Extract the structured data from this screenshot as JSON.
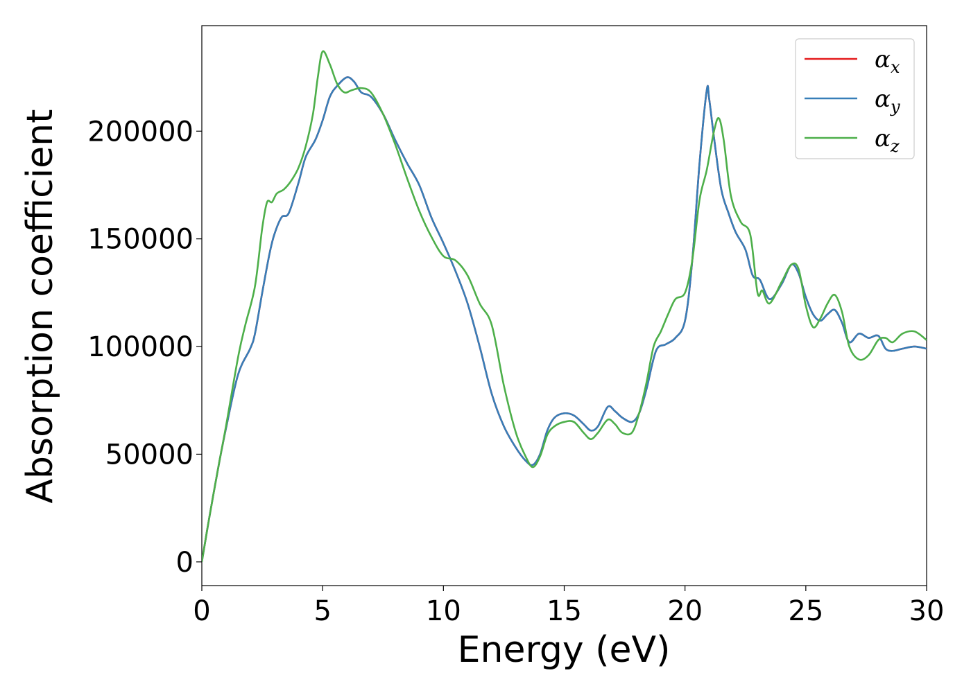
{
  "chart_data": {
    "type": "line",
    "xlabel": "Energy (eV)",
    "ylabel": "Absorption coefficient",
    "xlim": [
      0,
      30
    ],
    "ylim": [
      -11000,
      249000
    ],
    "xticks": [
      0,
      5,
      10,
      15,
      20,
      25,
      30
    ],
    "xtick_labels": [
      "0",
      "5",
      "10",
      "15",
      "20",
      "25",
      "30"
    ],
    "yticks": [
      0,
      50000,
      100000,
      150000,
      200000
    ],
    "ytick_labels": [
      "0",
      "50000",
      "100000",
      "150000",
      "200000"
    ],
    "grid": false,
    "legend_position": "top-right",
    "series": [
      {
        "name": "αx",
        "symbol": "α",
        "subscript": "x",
        "color": "#e41a1c",
        "x": [
          0,
          0.3,
          0.7,
          1.0,
          1.5,
          2.0,
          2.2,
          2.5,
          2.8,
          3.0,
          3.3,
          3.6,
          4.0,
          4.3,
          4.7,
          5.0,
          5.3,
          5.6,
          6.0,
          6.3,
          6.6,
          7.0,
          7.5,
          8.0,
          8.5,
          9.0,
          9.5,
          10.0,
          10.5,
          11.0,
          11.5,
          12.0,
          12.5,
          13.0,
          13.4,
          13.7,
          14.0,
          14.3,
          14.6,
          15.0,
          15.4,
          15.8,
          16.1,
          16.4,
          16.8,
          17.1,
          17.4,
          17.8,
          18.1,
          18.4,
          18.8,
          19.2,
          19.6,
          20.0,
          20.3,
          20.6,
          20.9,
          21.0,
          21.2,
          21.5,
          21.8,
          22.1,
          22.5,
          22.8,
          23.1,
          23.5,
          24.0,
          24.4,
          24.7,
          25.0,
          25.3,
          25.6,
          25.9,
          26.2,
          26.5,
          26.8,
          27.2,
          27.6,
          28.0,
          28.3,
          28.6,
          29.0,
          29.5,
          30.0
        ],
        "y": [
          0,
          20000,
          45000,
          62000,
          87000,
          99000,
          106000,
          125000,
          143000,
          152000,
          160000,
          162000,
          176000,
          188000,
          196000,
          205000,
          216000,
          221000,
          225000,
          223000,
          218000,
          216000,
          208000,
          196000,
          185000,
          175000,
          160000,
          148000,
          135000,
          120000,
          100000,
          78000,
          63000,
          53000,
          47000,
          45000,
          50000,
          61000,
          67000,
          69000,
          68000,
          64000,
          61000,
          63000,
          72000,
          70000,
          67000,
          65000,
          69000,
          80000,
          98000,
          101000,
          104000,
          112000,
          140000,
          185000,
          219000,
          215000,
          197000,
          173000,
          162000,
          153000,
          145000,
          133000,
          131000,
          122000,
          129000,
          138000,
          134000,
          123000,
          115000,
          112000,
          115000,
          117000,
          111000,
          102000,
          106000,
          104000,
          105000,
          99000,
          98000,
          99000,
          100000,
          99000
        ]
      },
      {
        "name": "αy",
        "symbol": "α",
        "subscript": "y",
        "color": "#377eb8",
        "x": [
          0,
          0.3,
          0.7,
          1.0,
          1.5,
          2.0,
          2.2,
          2.5,
          2.8,
          3.0,
          3.3,
          3.6,
          4.0,
          4.3,
          4.7,
          5.0,
          5.3,
          5.6,
          6.0,
          6.3,
          6.6,
          7.0,
          7.5,
          8.0,
          8.5,
          9.0,
          9.5,
          10.0,
          10.5,
          11.0,
          11.5,
          12.0,
          12.5,
          13.0,
          13.4,
          13.7,
          14.0,
          14.3,
          14.6,
          15.0,
          15.4,
          15.8,
          16.1,
          16.4,
          16.8,
          17.1,
          17.4,
          17.8,
          18.1,
          18.4,
          18.8,
          19.2,
          19.6,
          20.0,
          20.3,
          20.6,
          20.9,
          21.0,
          21.2,
          21.5,
          21.8,
          22.1,
          22.5,
          22.8,
          23.1,
          23.5,
          24.0,
          24.4,
          24.7,
          25.0,
          25.3,
          25.6,
          25.9,
          26.2,
          26.5,
          26.8,
          27.2,
          27.6,
          28.0,
          28.3,
          28.6,
          29.0,
          29.5,
          30.0
        ],
        "y": [
          0,
          20000,
          45000,
          62000,
          87000,
          99000,
          106000,
          125000,
          143000,
          152000,
          160000,
          162000,
          176000,
          188000,
          196000,
          205000,
          216000,
          221000,
          225000,
          223000,
          218000,
          216000,
          208000,
          196000,
          185000,
          175000,
          160000,
          148000,
          135000,
          120000,
          100000,
          78000,
          63000,
          53000,
          47000,
          45000,
          50000,
          61000,
          67000,
          69000,
          68000,
          64000,
          61000,
          63000,
          72000,
          70000,
          67000,
          65000,
          69000,
          80000,
          98000,
          101000,
          104000,
          112000,
          140000,
          185000,
          219000,
          215000,
          197000,
          173000,
          162000,
          153000,
          145000,
          133000,
          131000,
          122000,
          129000,
          138000,
          134000,
          123000,
          115000,
          112000,
          115000,
          117000,
          111000,
          102000,
          106000,
          104000,
          105000,
          99000,
          98000,
          99000,
          100000,
          99000
        ]
      },
      {
        "name": "αz",
        "symbol": "α",
        "subscript": "z",
        "color": "#4daf4a",
        "x": [
          0,
          0.3,
          0.7,
          1.0,
          1.5,
          1.8,
          2.2,
          2.5,
          2.7,
          2.9,
          3.1,
          3.4,
          3.7,
          4.0,
          4.3,
          4.6,
          4.8,
          5.0,
          5.3,
          5.6,
          5.9,
          6.2,
          6.6,
          7.0,
          7.5,
          8.0,
          8.5,
          9.0,
          9.5,
          10.0,
          10.5,
          11.0,
          11.5,
          12.0,
          12.5,
          13.0,
          13.4,
          13.7,
          14.0,
          14.3,
          14.6,
          15.0,
          15.4,
          15.8,
          16.1,
          16.4,
          16.8,
          17.1,
          17.4,
          17.8,
          18.1,
          18.4,
          18.7,
          19.0,
          19.3,
          19.6,
          20.0,
          20.3,
          20.6,
          20.9,
          21.2,
          21.4,
          21.6,
          21.9,
          22.3,
          22.7,
          23.0,
          23.2,
          23.5,
          24.0,
          24.4,
          24.7,
          25.0,
          25.3,
          25.6,
          25.9,
          26.2,
          26.5,
          26.8,
          27.2,
          27.6,
          28.0,
          28.3,
          28.6,
          29.0,
          29.5,
          30.0
        ],
        "y": [
          0,
          20000,
          45000,
          63000,
          95000,
          110000,
          128000,
          155000,
          167000,
          167000,
          171000,
          173000,
          177000,
          183000,
          193000,
          208000,
          225000,
          237000,
          231000,
          222000,
          218000,
          219000,
          220000,
          218000,
          208000,
          194000,
          178000,
          163000,
          151000,
          142000,
          140000,
          133000,
          120000,
          110000,
          82000,
          60000,
          49000,
          44000,
          49000,
          59000,
          63000,
          65000,
          65000,
          60000,
          57000,
          60000,
          66000,
          64000,
          60000,
          60000,
          69000,
          83000,
          100000,
          107000,
          115000,
          122000,
          125000,
          140000,
          168000,
          182000,
          200000,
          206000,
          196000,
          170000,
          158000,
          152000,
          125000,
          126000,
          120000,
          130000,
          138000,
          136000,
          119000,
          109000,
          113000,
          120000,
          124000,
          116000,
          100000,
          94000,
          96000,
          103000,
          104000,
          102000,
          106000,
          107000,
          103000
        ]
      }
    ]
  }
}
